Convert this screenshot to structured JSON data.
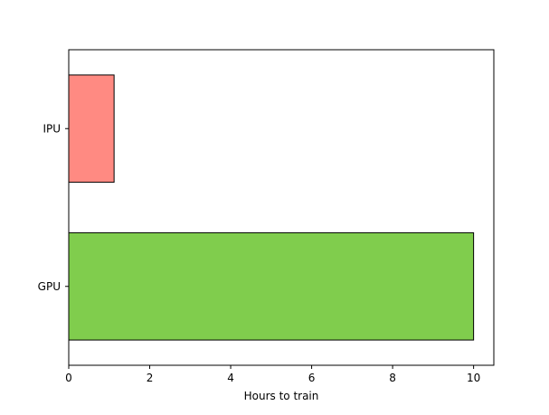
{
  "chart_data": {
    "type": "bar",
    "orientation": "horizontal",
    "categories": [
      "GPU",
      "IPU"
    ],
    "values": [
      10.0,
      1.12
    ],
    "bar_colors": [
      "#80cd4d",
      "#ff8a82"
    ],
    "edge_color": "#000000",
    "title": "",
    "xlabel": "Hours to train",
    "ylabel": "",
    "xlim": [
      0,
      10.5
    ],
    "xticks": [
      0,
      2,
      4,
      6,
      8,
      10
    ],
    "xtick_labels": [
      "0",
      "2",
      "4",
      "6",
      "8",
      "10"
    ],
    "grid": false,
    "legend": null
  }
}
